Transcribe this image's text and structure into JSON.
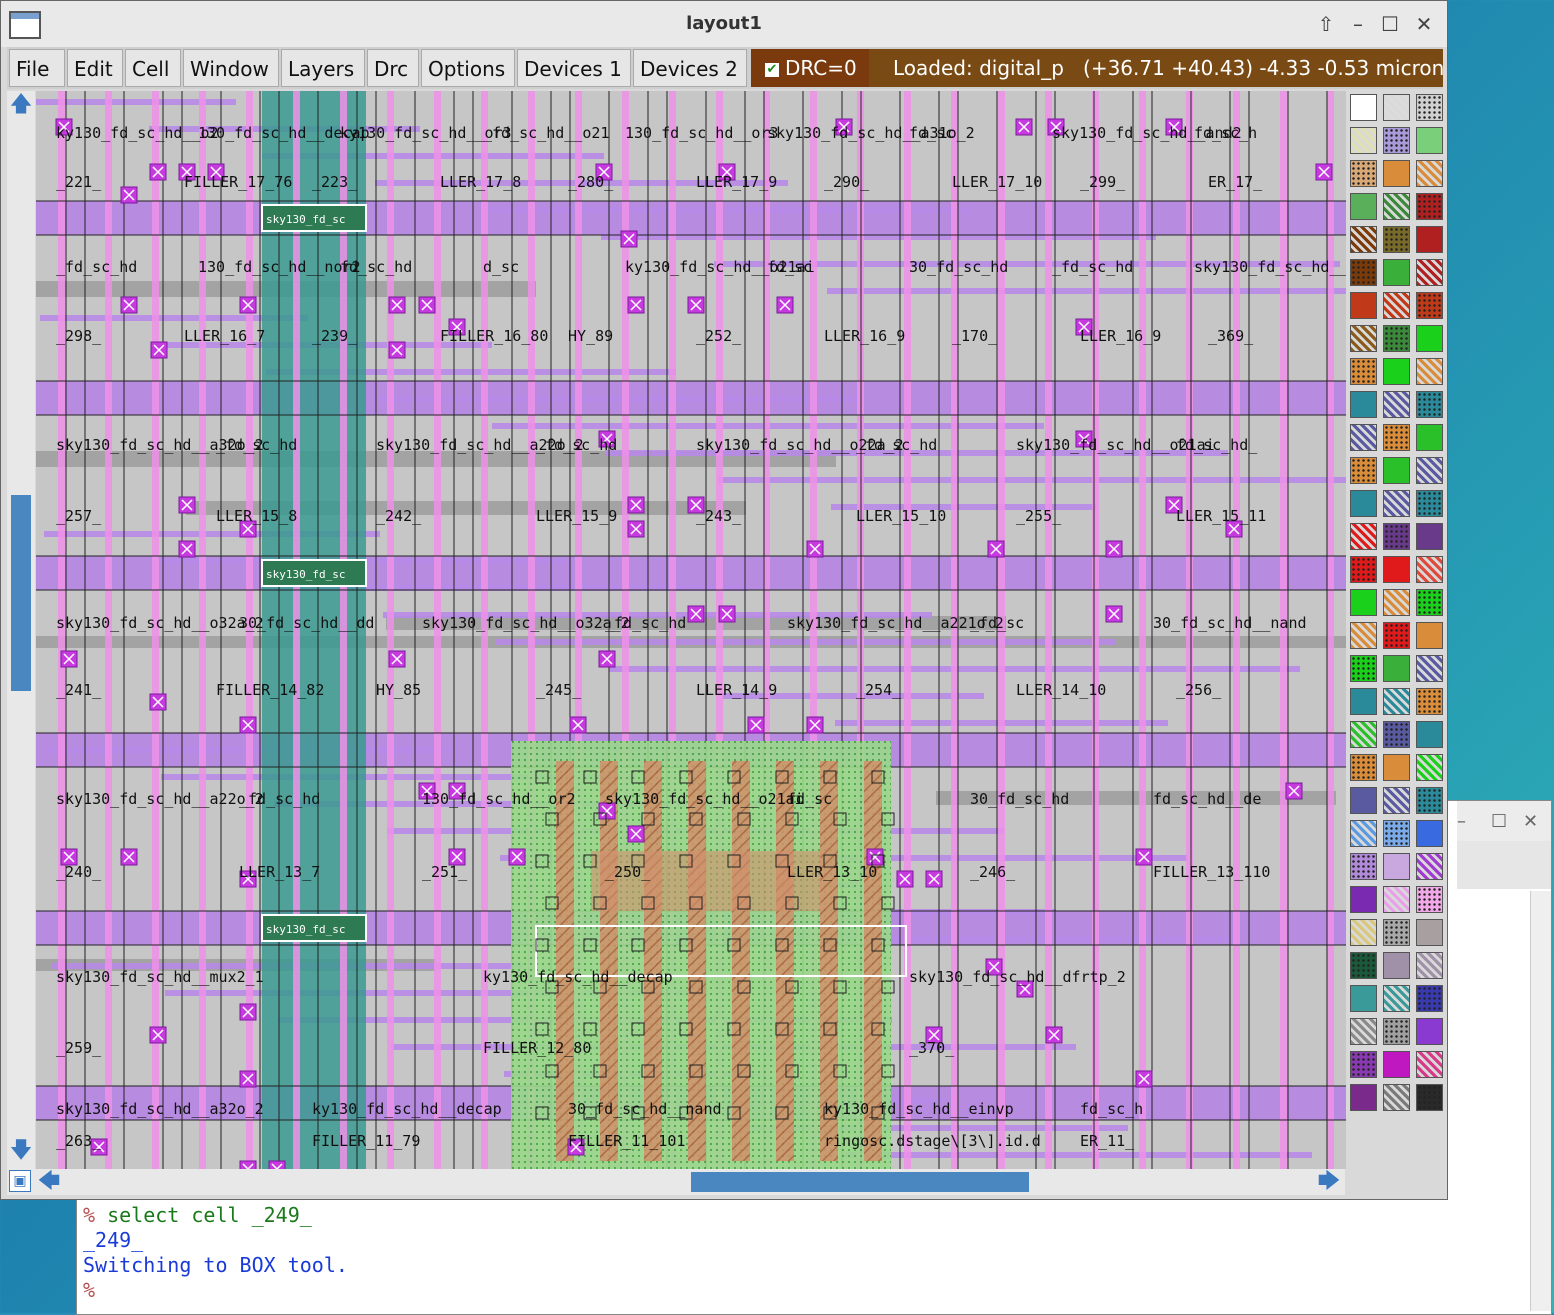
{
  "window": {
    "title": "layout1"
  },
  "menubar": {
    "items": [
      "File",
      "Edit",
      "Cell",
      "Window",
      "Layers",
      "Drc",
      "Options",
      "Devices 1",
      "Devices 2"
    ],
    "drc_label": "DRC=0",
    "status": "Loaded: digital_p",
    "coords": "(+36.71 +40.43) -4.33 -0.53 microns"
  },
  "layout": {
    "cell_labels": [
      "ky130_fd_sc_hd__o2",
      "130_fd_sc_hd__decap",
      "ky130_fd_sc_hd__or3",
      "_fd_sc_hd__o21",
      "130_fd_sc_hd__or3",
      "sky130_fd_sc_hd__a31o_2",
      "fd_sc",
      "sky130_fd_sc_hd__and2",
      "fd_sc_h",
      "_221_",
      "FILLER_17_76",
      "_223_",
      "LLER_17_8",
      "_280_",
      "LLER_17_9",
      "_290_",
      "LLER_17_10",
      "_299_",
      "ER_17_",
      "_fd_sc_hd",
      "130_fd_sc_hd__nor2",
      "fd_sc_hd",
      "d_sc",
      "ky130_fd_sc_hd__o21ai",
      "fd_sc",
      "30_fd_sc_hd",
      "_fd_sc_hd",
      "sky130_fd_sc_hd__dfrtp_2",
      "_298_",
      "LLER_16_7",
      "_239_",
      "FILLER_16_80",
      "HY_89",
      "_252_",
      "LLER_16_9",
      "_170_",
      "LLER_16_9",
      "_369_",
      "sky130_fd_sc_hd__a32o_2",
      "_fd_sc_hd",
      "sky130_fd_sc_hd__a22o_2",
      "_fd_sc_hd",
      "sky130_fd_sc_hd__o22a_2",
      "_fd_sc_hd",
      "sky130_fd_sc_hd__o21ai",
      "fd_sc_hd_",
      "_257_",
      "LLER_15_8",
      "_242_",
      "LLER_15_9",
      "_243_",
      "LLER_15_10",
      "_255_",
      "LLER_15_11",
      "sky130_fd_sc_hd__o32a_2",
      "30_fd_sc_hd__dd",
      "sky130_fd_sc_hd__o32a_2",
      "_fd_sc_hd",
      "sky130_fd_sc_hd__a221o_2",
      "_fd_sc",
      "30_fd_sc_hd__nand",
      "_241_",
      "FILLER_14_82",
      "HY_85",
      "_245_",
      "LLER_14_9",
      "_254_",
      "LLER_14_10",
      "_256_",
      "sky130_fd_sc_hd__a22o_2",
      "_fd_sc_hd",
      "130_fd_sc_hd__or2",
      "sky130_fd_sc_hd__o21ai",
      "fd_sc",
      "30_fd_sc_hd",
      "fd_sc_hd__de",
      "_240_",
      "LLER_13_7",
      "_251_",
      "_250_",
      "LLER_13_10",
      "_246_",
      "FILLER_13_110",
      "sky130_fd_sc_hd__mux2_1",
      "ky130_fd_sc_hd__decap",
      "sky130_fd_sc_hd__dfrtp_2",
      "_259_",
      "FILLER_12_80",
      "_370_",
      "sky130_fd_sc_hd__a32o_2",
      "ky130_fd_sc_hd__decap",
      "30_fd_sc_hd__nand",
      "ky130_fd_sc_hd__einvp",
      "fd_sc_h",
      "_263_",
      "FILLER_11_79",
      "FILLER_11_101",
      "ringosc.dstage\\[3\\].id.d",
      "ER_11_"
    ],
    "tap_labels": [
      "sky130_fd_sc",
      "sky130_fd_sc",
      "sky130_fd_sc"
    ]
  },
  "palette": {
    "colors": [
      "#ffffff",
      "#dcdcdc",
      "#cfcfcf",
      "#e0e0b0",
      "#a89ad8",
      "#7ad07a",
      "#d9a877",
      "#d98c3a",
      "#d98c3a",
      "#5ab05a",
      "#3a8a3a",
      "#b02020",
      "#7a3a0a",
      "#7a6a2a",
      "#b02020",
      "#7a3a0a",
      "#3ab03a",
      "#b02020",
      "#c03a1a",
      "#c03a1a",
      "#c03a1a",
      "#8a5a1a",
      "#3a8a3a",
      "#1ad01a",
      "#d98c3a",
      "#1ad01a",
      "#d98c3a",
      "#2a8a9a",
      "#5a5aa0",
      "#2a8a9a",
      "#5a5aa0",
      "#d98c3a",
      "#2ac02a",
      "#d98c3a",
      "#2ac02a",
      "#5a5aa0",
      "#2a8a9a",
      "#5a5aa0",
      "#2a8a9a",
      "#e01a1a",
      "#6a3a8a",
      "#6a3a8a",
      "#e01a1a",
      "#e01a1a",
      "#e04a3a",
      "#1ad01a",
      "#d98c3a",
      "#1ad01a",
      "#d98c3a",
      "#e01a1a",
      "#d98c3a",
      "#1ad01a",
      "#3ab03a",
      "#5a5aa0",
      "#2a8a9a",
      "#2a8a9a",
      "#d98c3a",
      "#2ac02a",
      "#5a5aa0",
      "#2a8a9a",
      "#d98c3a",
      "#d98c3a",
      "#1ad01a",
      "#5a5aa0",
      "#5a5aa0",
      "#2a8a9a",
      "#5a9ae0",
      "#7aaae8",
      "#3a6ae0",
      "#b08ad8",
      "#c9a8e0",
      "#a03ad0",
      "#7a2ab0",
      "#e8a0e8",
      "#f0a8e8",
      "#d8c878",
      "#a8a8a8",
      "#a8a0a0",
      "#1a5a3a",
      "#a090a8",
      "#a090a8",
      "#3a9a9a",
      "#3a9a9a",
      "#3a3ab0",
      "#8a8a8a",
      "#a0a0a0",
      "#8a3ad0",
      "#8a3ab0",
      "#c018c0",
      "#d83a8a",
      "#7a2a8a",
      "#7a7a7a",
      "#2a2a2a"
    ]
  },
  "console": {
    "lines": [
      {
        "prompt": "%",
        "text": " select cell _249_"
      },
      {
        "prompt": "",
        "text": "_249_"
      },
      {
        "prompt": "",
        "text": "Switching to BOX tool."
      },
      {
        "prompt": "%",
        "text": ""
      }
    ]
  }
}
